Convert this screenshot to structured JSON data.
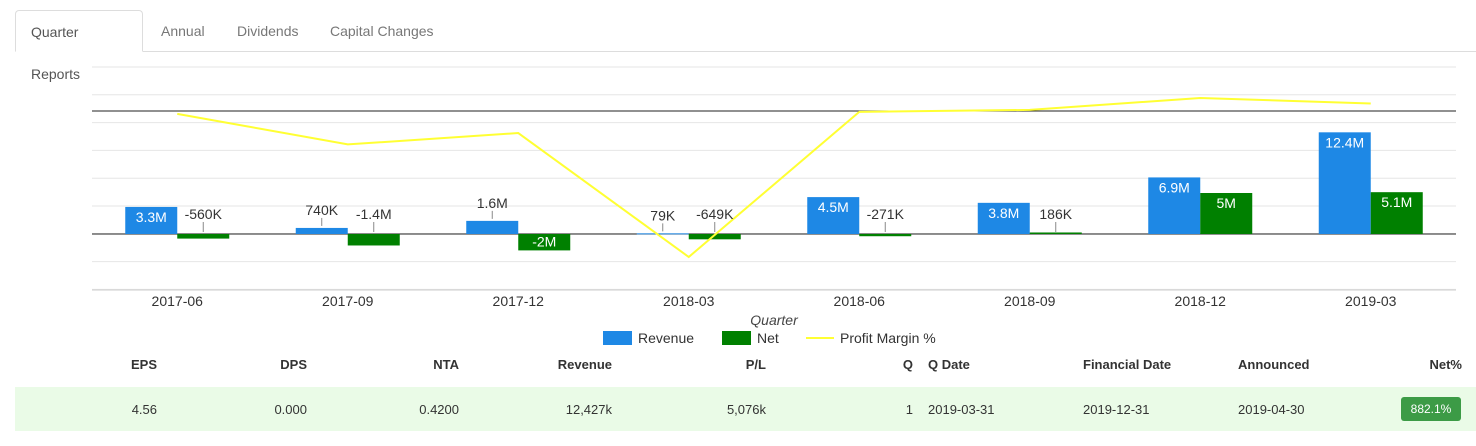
{
  "tabs": [
    {
      "label": "Quarter Reports",
      "active": true
    },
    {
      "label": "Annual",
      "active": false
    },
    {
      "label": "Dividends",
      "active": false
    },
    {
      "label": "Capital Changes",
      "active": false
    }
  ],
  "chart_data": {
    "type": "bar",
    "categories": [
      "2017-06",
      "2017-09",
      "2017-12",
      "2018-03",
      "2018-06",
      "2018-09",
      "2018-12",
      "2019-03"
    ],
    "xlabel": "Quarter",
    "series": [
      {
        "name": "Revenue",
        "type": "bar",
        "color": "#1e88e5",
        "values": [
          3300000,
          740000,
          1600000,
          79000,
          4500000,
          3800000,
          6900000,
          12400000
        ],
        "labels": [
          "3.3M",
          "740K",
          "1.6M",
          "79K",
          "4.5M",
          "3.8M",
          "6.9M",
          "12.4M"
        ]
      },
      {
        "name": "Net",
        "type": "bar",
        "color": "#008000",
        "values": [
          -560000,
          -1400000,
          -2000000,
          -649000,
          -271000,
          186000,
          5000000,
          5100000
        ],
        "labels": [
          "-560K",
          "-1.4M",
          "-2M",
          "-649K",
          "-271K",
          "186K",
          "5M",
          "5.1M"
        ]
      },
      {
        "name": "Profit Margin %",
        "type": "line",
        "color": "#ffff33",
        "values": [
          -17,
          -189,
          -125,
          -822,
          -6,
          5,
          72,
          41
        ]
      }
    ],
    "legend_position": "bottom",
    "grid": true
  },
  "table": {
    "headers": [
      "EPS",
      "DPS",
      "NTA",
      "Revenue",
      "P/L",
      "Q",
      "Q Date",
      "Financial Date",
      "Announced",
      "Net%"
    ],
    "row": [
      "4.56",
      "0.000",
      "0.4200",
      "12,427k",
      "5,076k",
      "1",
      "2019-03-31",
      "2019-12-31",
      "2019-04-30",
      "882.1%"
    ],
    "badge_color": "#3c9b46",
    "row_color": "#eafbe7"
  }
}
